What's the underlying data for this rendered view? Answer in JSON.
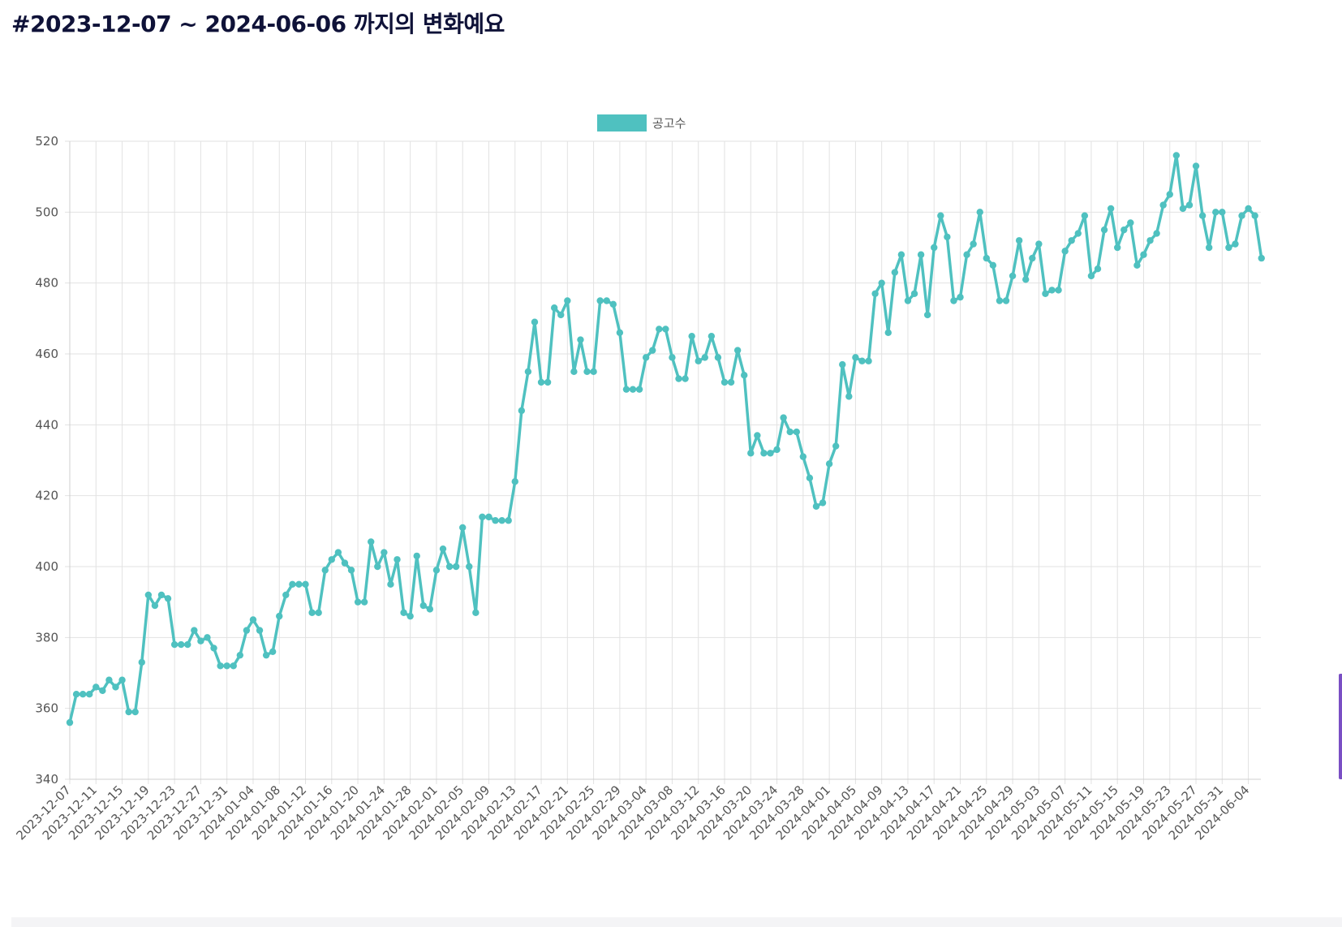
{
  "page": {
    "title": "#2023-12-07 ~ 2024-06-06 까지의 변화예요"
  },
  "chart_data": {
    "type": "line",
    "title": "",
    "xlabel": "",
    "ylabel": "",
    "ylim": [
      340,
      520
    ],
    "yticks": [
      340,
      360,
      380,
      400,
      420,
      440,
      460,
      480,
      500,
      520
    ],
    "grid": true,
    "legend_position": "top-center",
    "color": "#4fc1c0",
    "tick_labels": [
      "2023-12-07",
      "2023-12-11",
      "2023-12-15",
      "2023-12-19",
      "2023-12-23",
      "2023-12-27",
      "2023-12-31",
      "2024-01-04",
      "2024-01-08",
      "2024-01-12",
      "2024-01-16",
      "2024-01-20",
      "2024-01-24",
      "2024-01-28",
      "2024-02-01",
      "2024-02-05",
      "2024-02-09",
      "2024-02-13",
      "2024-02-17",
      "2024-02-21",
      "2024-02-25",
      "2024-02-29",
      "2024-03-04",
      "2024-03-08",
      "2024-03-12",
      "2024-03-16",
      "2024-03-20",
      "2024-03-24",
      "2024-03-28",
      "2024-04-01",
      "2024-04-05",
      "2024-04-09",
      "2024-04-13",
      "2024-04-17",
      "2024-04-21",
      "2024-04-25",
      "2024-04-29",
      "2024-05-03",
      "2024-05-07",
      "2024-05-11",
      "2024-05-15",
      "2024-05-19",
      "2024-05-23",
      "2024-05-27",
      "2024-05-31",
      "2024-06-04"
    ],
    "x_start": "2023-12-07",
    "x_end": "2024-06-06",
    "series": [
      {
        "name": "공고수",
        "values": [
          356,
          364,
          364,
          364,
          366,
          365,
          368,
          366,
          368,
          359,
          359,
          373,
          392,
          389,
          392,
          391,
          378,
          378,
          378,
          382,
          379,
          380,
          377,
          372,
          372,
          372,
          375,
          382,
          385,
          382,
          375,
          376,
          386,
          392,
          395,
          395,
          395,
          387,
          387,
          399,
          402,
          404,
          401,
          399,
          390,
          390,
          407,
          400,
          404,
          395,
          402,
          387,
          386,
          403,
          389,
          388,
          399,
          405,
          400,
          400,
          411,
          400,
          387,
          414,
          414,
          413,
          413,
          413,
          424,
          444,
          455,
          469,
          452,
          452,
          473,
          471,
          475,
          455,
          464,
          455,
          455,
          475,
          475,
          474,
          466,
          450,
          450,
          450,
          459,
          461,
          467,
          467,
          459,
          453,
          453,
          465,
          458,
          459,
          465,
          459,
          452,
          452,
          461,
          454,
          432,
          437,
          432,
          432,
          433,
          442,
          438,
          438,
          431,
          425,
          417,
          418,
          429,
          434,
          457,
          448,
          459,
          458,
          458,
          477,
          480,
          466,
          483,
          488,
          475,
          477,
          488,
          471,
          490,
          499,
          493,
          475,
          476,
          488,
          491,
          500,
          487,
          485,
          475,
          475,
          482,
          492,
          481,
          487,
          491,
          477,
          478,
          478,
          489,
          492,
          494,
          499,
          482,
          484,
          495,
          501,
          490,
          495,
          497,
          485,
          488,
          492,
          494,
          502,
          505,
          516,
          501,
          502,
          513,
          499,
          490,
          500,
          500,
          490,
          491,
          499,
          501,
          499,
          487
        ]
      }
    ]
  }
}
